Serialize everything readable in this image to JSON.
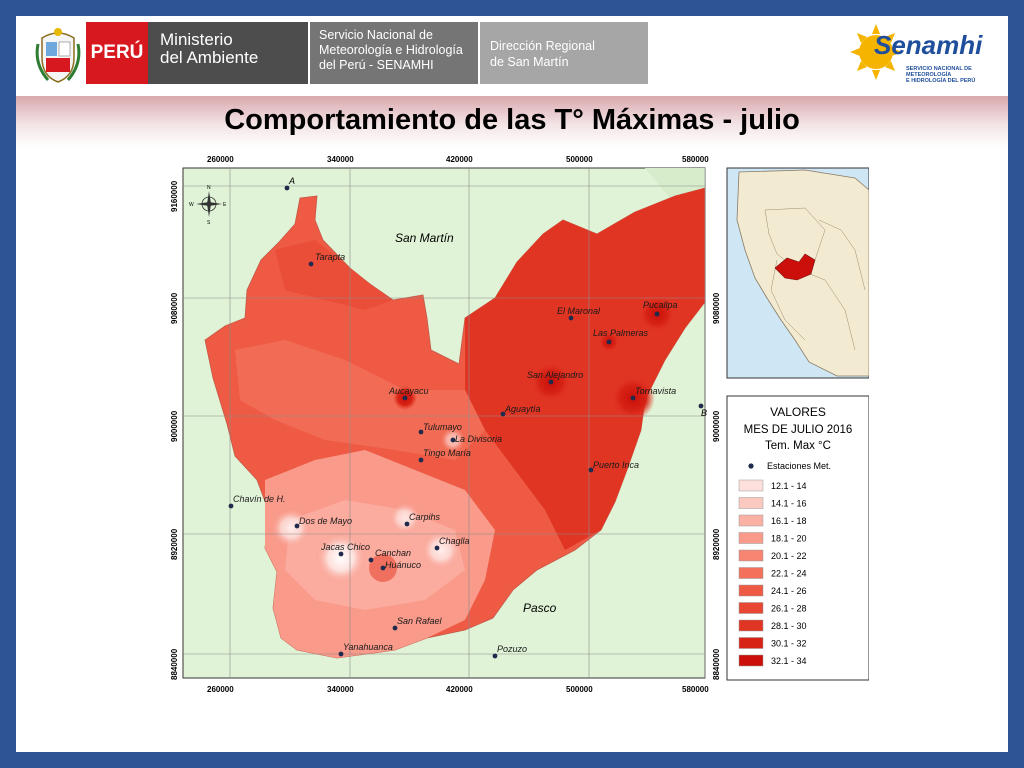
{
  "header": {
    "peru_label": "PERÚ",
    "ministry_line1": "Ministerio",
    "ministry_line2": "del Ambiente",
    "service_line1": "Servicio Nacional de",
    "service_line2": "Meteorología e Hidrología",
    "service_line3": "del Perú - SENAMHI",
    "region_line1": "Dirección Regional",
    "region_line2": "de San Martín",
    "logo_name": "Senamhi",
    "logo_sub_line1": "SERVICIO NACIONAL DE METEOROLOGÍA",
    "logo_sub_line2": "E HIDROLOGÍA DEL PERÚ"
  },
  "slide_title": "Comportamiento de las T° Máximas - julio",
  "map": {
    "x_ticks": [
      "260000",
      "340000",
      "420000",
      "500000",
      "580000"
    ],
    "y_ticks": [
      "9160000",
      "9080000",
      "9000000",
      "8920000",
      "8840000"
    ],
    "region_labels": {
      "north": "San Martín",
      "south": "Pasco"
    },
    "corner_labels": {
      "a": "A",
      "b": "B"
    },
    "compass": {
      "n": "N",
      "s": "S",
      "e": "E",
      "w": "W"
    },
    "stations": [
      "Tarapta",
      "El Maronal",
      "Pucallpa",
      "Las Palmeras",
      "San Alejandro",
      "Tornavista",
      "Aucayacu",
      "Aguaytía",
      "Tulumayo",
      "La Divisoria",
      "Tingo María",
      "Puerto Inca",
      "Chavín de H.",
      "Dos de Mayo",
      "Carpihs",
      "Chaglla",
      "Jacas Chico",
      "Canchan",
      "Huánuco",
      "San Rafael",
      "Yanahuanca",
      "Pozuzo"
    ]
  },
  "legend": {
    "title_line1": "VALORES",
    "title_line2": "MES DE JULIO 2016",
    "title_line3": "Tem. Max °C",
    "station_label": "Estaciones Met.",
    "classes": [
      {
        "label": "12.1 - 14",
        "color": "#fde0dc"
      },
      {
        "label": "14.1 - 16",
        "color": "#fcc9c0"
      },
      {
        "label": "16.1 - 18",
        "color": "#fbb0a4"
      },
      {
        "label": "18.1 - 20",
        "color": "#f99a8a"
      },
      {
        "label": "20.1 - 22",
        "color": "#f78571"
      },
      {
        "label": "22.1 - 24",
        "color": "#f3705a"
      },
      {
        "label": "24.1 - 26",
        "color": "#ee5a44"
      },
      {
        "label": "26.1 - 28",
        "color": "#e84733"
      },
      {
        "label": "28.1 - 30",
        "color": "#e13524"
      },
      {
        "label": "30.1 - 32",
        "color": "#d72316"
      },
      {
        "label": "32.1 - 34",
        "color": "#cb0f0a"
      }
    ]
  },
  "colors": {
    "frame": "#2f5496",
    "background_land": "#e0f3d6",
    "peru_red": "#d7191f"
  }
}
